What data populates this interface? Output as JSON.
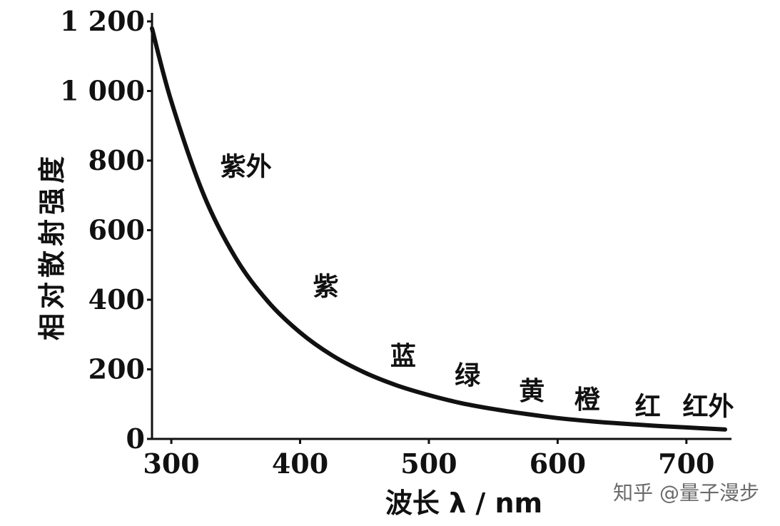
{
  "chart_data": {
    "type": "line",
    "title": "",
    "xlabel": "波长 λ / nm",
    "ylabel": "相对散射强度",
    "xlim": [
      285,
      735
    ],
    "ylim": [
      0,
      1200
    ],
    "x_ticks": [
      "300",
      "400",
      "500",
      "600",
      "700"
    ],
    "x_tick_values": [
      300,
      400,
      500,
      600,
      700
    ],
    "y_ticks": [
      "0",
      "200",
      "400",
      "600",
      "800",
      "1 000",
      "1 200"
    ],
    "y_tick_values": [
      0,
      200,
      400,
      600,
      800,
      1000,
      1200
    ],
    "grid": false,
    "series": [
      {
        "x": [
          285,
          300,
          325,
          350,
          375,
          400,
          425,
          450,
          475,
          500,
          525,
          550,
          575,
          600,
          625,
          650,
          675,
          700,
          730
        ],
        "y": [
          1180,
          970,
          703,
          520,
          395,
          306,
          240,
          191,
          154,
          126,
          103,
          86,
          72,
          60,
          51,
          44,
          38,
          33,
          27
        ]
      }
    ],
    "annotations": [
      {
        "text": "紫外",
        "x": 358,
        "y": 785
      },
      {
        "text": "紫",
        "x": 420,
        "y": 440
      },
      {
        "text": "蓝",
        "x": 480,
        "y": 240
      },
      {
        "text": "绿",
        "x": 530,
        "y": 185
      },
      {
        "text": "黄",
        "x": 580,
        "y": 140
      },
      {
        "text": "橙",
        "x": 623,
        "y": 115
      },
      {
        "text": "红",
        "x": 670,
        "y": 95
      },
      {
        "text": "红外",
        "x": 717,
        "y": 95
      }
    ]
  },
  "watermark": "知乎 @量子漫步"
}
